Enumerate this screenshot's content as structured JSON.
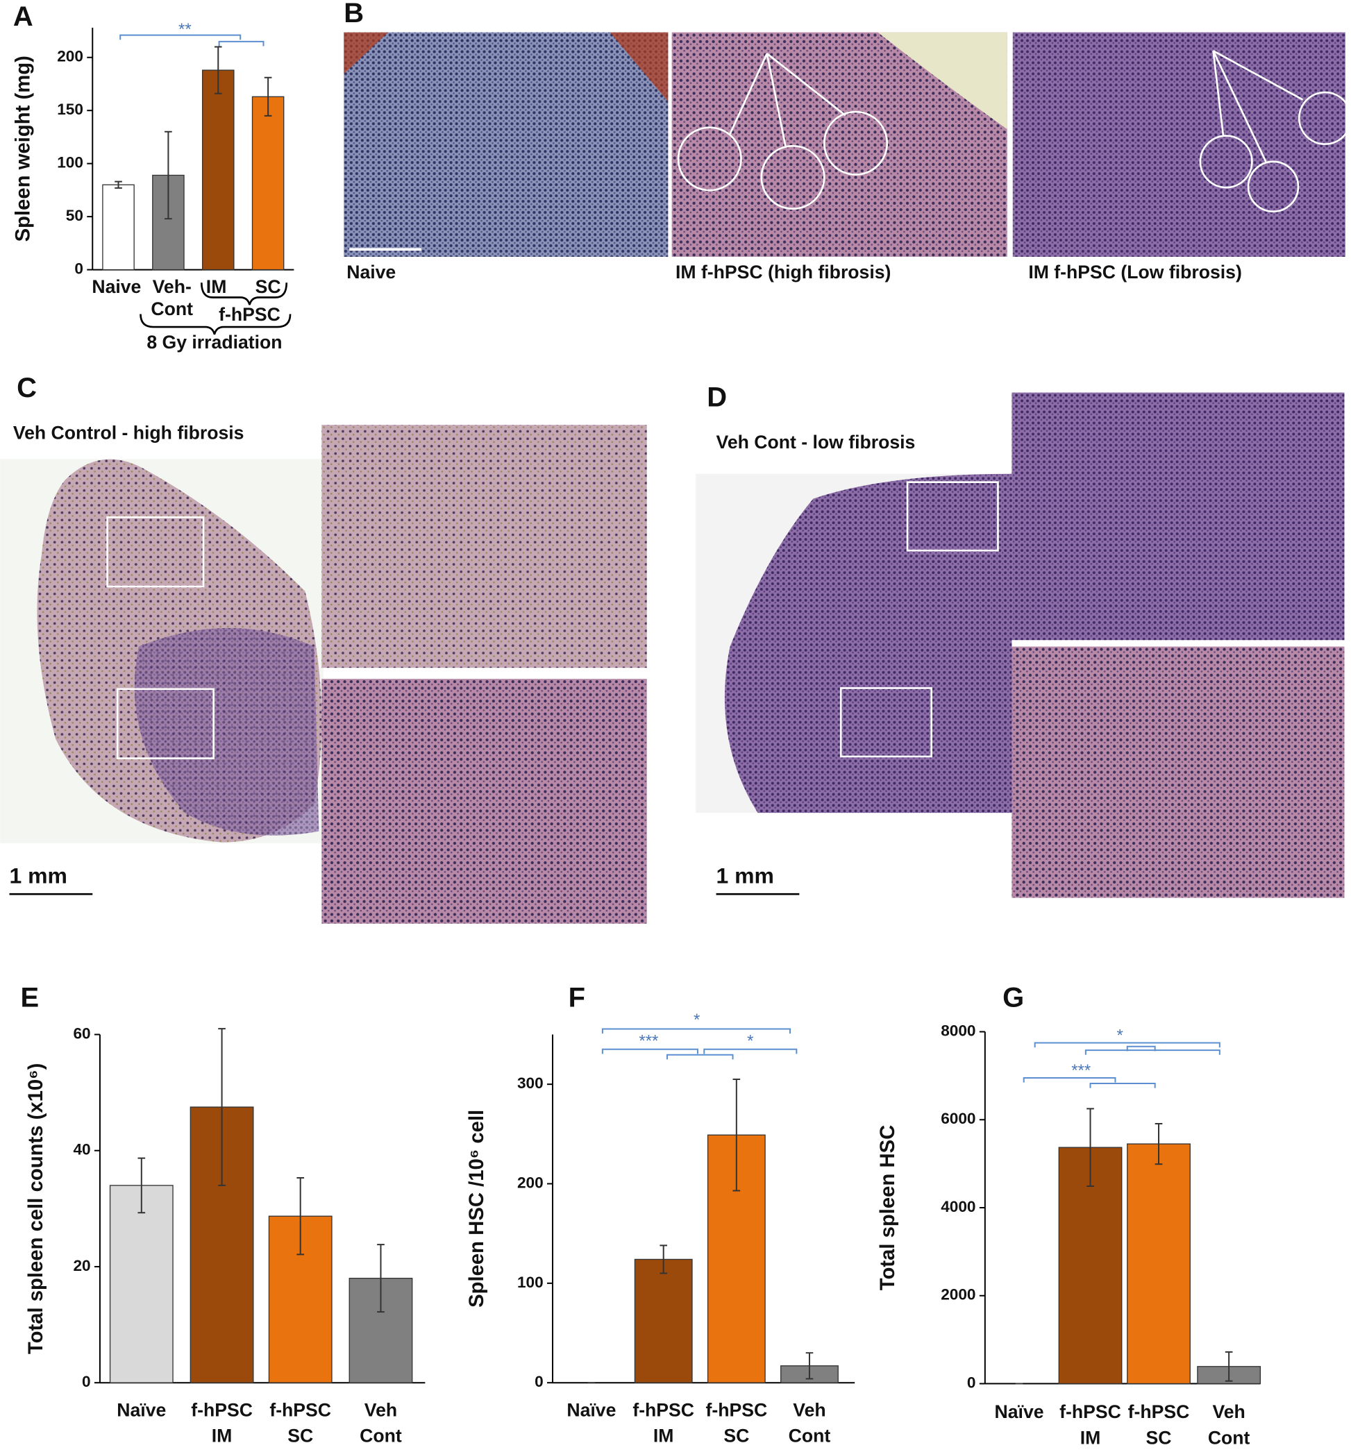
{
  "chart_data": [
    {
      "type": "bar",
      "panel": "A",
      "ylabel": "Spleen weight (mg)",
      "categories": [
        [
          "Naive"
        ],
        [
          "Veh-",
          "Cont"
        ],
        [
          "IM"
        ],
        [
          "SC"
        ]
      ],
      "values": [
        80,
        89,
        188,
        163
      ],
      "errors": [
        3,
        41,
        22,
        18
      ],
      "colors": [
        "#ffffff",
        "#808080",
        "#9c4a0c",
        "#e8730f"
      ],
      "ylim": [
        0,
        228
      ],
      "yticks": [
        0,
        50,
        100,
        150,
        200
      ],
      "group_labels": [
        "f-hPSC",
        "8 Gy irradiation"
      ],
      "annotations": [
        "**"
      ]
    },
    {
      "type": "bar",
      "panel": "E",
      "ylabel": "Total spleen cell counts (x10⁶)",
      "categories": [
        [
          "Naïve"
        ],
        [
          "f-hPSC",
          "IM"
        ],
        [
          "f-hPSC",
          "SC"
        ],
        [
          "Veh",
          "Cont"
        ]
      ],
      "values": [
        34,
        47.5,
        28.7,
        18
      ],
      "errors": [
        4.7,
        13.5,
        6.6,
        5.8
      ],
      "colors": [
        "#d9d9d9",
        "#9c4a0c",
        "#e8730f",
        "#808080"
      ],
      "ylim": [
        0,
        60
      ],
      "yticks": [
        0,
        20,
        40,
        60
      ],
      "annotations": []
    },
    {
      "type": "bar",
      "panel": "F",
      "ylabel": "Spleen HSC /10⁶ cell",
      "categories": [
        [
          "Naïve"
        ],
        [
          "f-hPSC",
          "IM"
        ],
        [
          "f-hPSC",
          "SC"
        ],
        [
          "Veh",
          "Cont"
        ]
      ],
      "values": [
        0,
        124,
        249,
        17
      ],
      "errors": [
        0,
        14,
        56,
        13
      ],
      "colors": [
        "#d9d9d9",
        "#9c4a0c",
        "#e8730f",
        "#808080"
      ],
      "ylim": [
        0,
        350
      ],
      "yticks": [
        0,
        100,
        200,
        300
      ],
      "annotations": [
        "*",
        "***",
        "*"
      ]
    },
    {
      "type": "bar",
      "panel": "G",
      "ylabel": "Total spleen HSC",
      "categories": [
        [
          "Naïve"
        ],
        [
          "f-hPSC",
          "IM"
        ],
        [
          "f-hPSC",
          "SC"
        ],
        [
          "Veh",
          "Cont"
        ]
      ],
      "values": [
        0,
        5370,
        5450,
        390
      ],
      "errors": [
        0,
        880,
        460,
        330
      ],
      "colors": [
        "#d9d9d9",
        "#9c4a0c",
        "#e8730f",
        "#808080"
      ],
      "ylim": [
        0,
        8000
      ],
      "yticks": [
        0,
        2000,
        4000,
        6000,
        8000
      ],
      "annotations": [
        "*",
        "***"
      ]
    }
  ],
  "micrographs": {
    "B": {
      "panel": "B",
      "captions": [
        "Naive",
        "IM f-hPSC (high fibrosis)",
        "IM f-hPSC (Low fibrosis)"
      ]
    },
    "C": {
      "panel": "C",
      "title": "Veh Control - high fibrosis",
      "scale": "1 mm"
    },
    "D": {
      "panel": "D",
      "title": "Veh Cont - low fibrosis",
      "scale": "1 mm"
    }
  }
}
